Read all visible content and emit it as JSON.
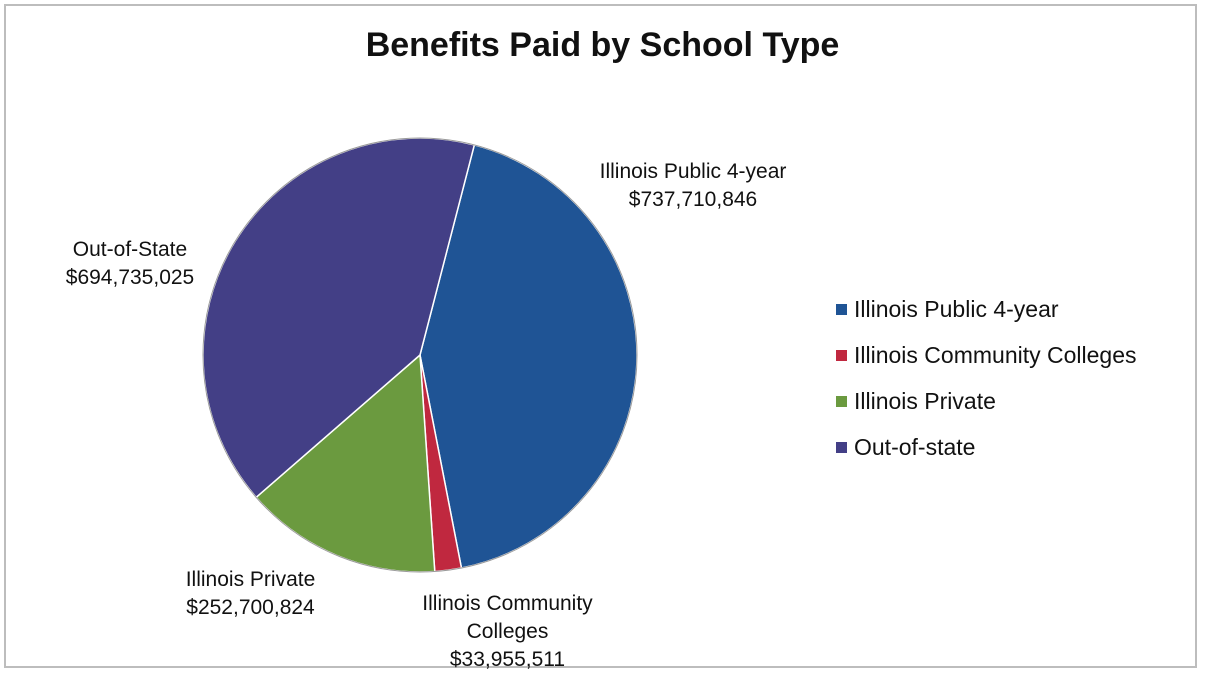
{
  "chart_data": {
    "type": "pie",
    "title": "Benefits Paid by School Type",
    "slices": [
      {
        "name": "Illinois Public 4-year",
        "value": 737710846,
        "value_label": "$737,710,846",
        "color": "#1f5495"
      },
      {
        "name": "Illinois Community Colleges",
        "value": 33955511,
        "value_label": "$33,955,511",
        "color": "#c0283f"
      },
      {
        "name": "Illinois Private",
        "value": 252700824,
        "value_label": "$252,700,824",
        "color": "#6b9a3f"
      },
      {
        "name": "Out-of-state",
        "value": 694735025,
        "value_label": "$694,735,025",
        "color": "#433f86"
      }
    ],
    "data_labels": [
      {
        "lines": [
          "Illinois Public 4-year",
          "$737,710,846"
        ]
      },
      {
        "lines": [
          "Illinois Community",
          "Colleges",
          "$33,955,511"
        ]
      },
      {
        "lines": [
          "Illinois Private",
          "$252,700,824"
        ]
      },
      {
        "lines": [
          "Out-of-State",
          "$694,735,025"
        ]
      }
    ],
    "legend": {
      "placement": "right",
      "entries": [
        "Illinois Public 4-year",
        "Illinois Community Colleges",
        "Illinois Private",
        "Out-of-state"
      ]
    }
  }
}
